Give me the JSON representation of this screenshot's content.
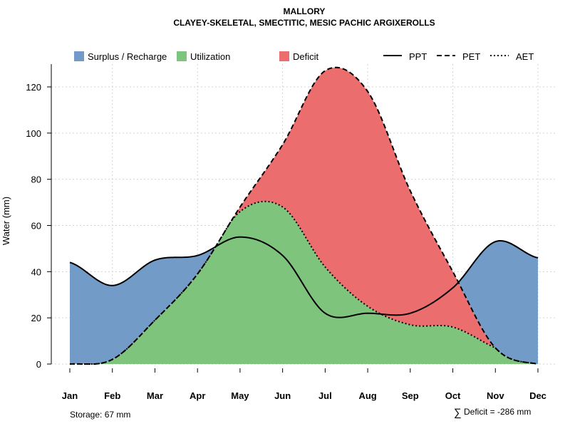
{
  "chart_data": {
    "type": "area",
    "title": "MALLORY",
    "subtitle": "CLAYEY-SKELETAL, SMECTITIC, MESIC PACHIC ARGIXEROLLS",
    "xlabel": "",
    "ylabel": "Water (mm)",
    "ylim": [
      0,
      130
    ],
    "yticks": [
      "0",
      "20",
      "40",
      "60",
      "80",
      "100",
      "120"
    ],
    "ytick_values": [
      0,
      20,
      40,
      60,
      80,
      100,
      120
    ],
    "categories": [
      "Jan",
      "Feb",
      "Mar",
      "Apr",
      "May",
      "Jun",
      "Jul",
      "Aug",
      "Sep",
      "Oct",
      "Nov",
      "Dec"
    ],
    "grid": true,
    "series": [
      {
        "name": "PPT",
        "style": "solid",
        "values": [
          44,
          34,
          45,
          47,
          55,
          47,
          22,
          22,
          22,
          33,
          53,
          46
        ]
      },
      {
        "name": "PET",
        "style": "dashed",
        "values": [
          0,
          2,
          19,
          39,
          68,
          95,
          127,
          118,
          75,
          40,
          7,
          0
        ]
      },
      {
        "name": "AET",
        "style": "dotted",
        "values": [
          0,
          2,
          19,
          39,
          66,
          68,
          42,
          25,
          17,
          16,
          7,
          0
        ]
      }
    ],
    "fills": [
      {
        "name": "Surplus / Recharge",
        "color": "#739bc8"
      },
      {
        "name": "Utilization",
        "color": "#7fc47d"
      },
      {
        "name": "Deficit",
        "color": "#eb6d6d"
      }
    ],
    "legend_placement": "top",
    "annotations": {
      "storage": "Storage: 67 mm",
      "deficit_symbol": "∑",
      "deficit": "Deficit = -286 mm"
    }
  }
}
